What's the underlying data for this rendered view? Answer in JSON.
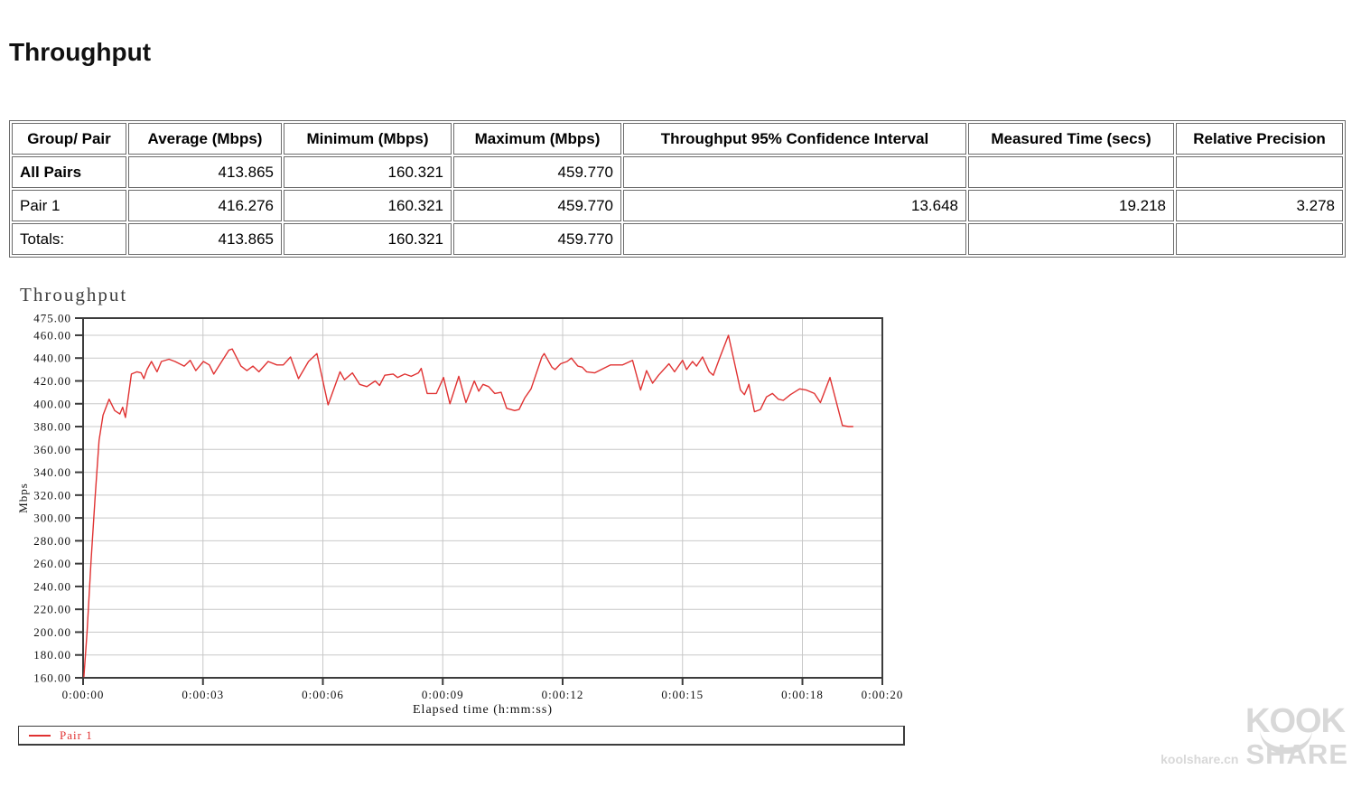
{
  "page_title": "Throughput",
  "table": {
    "headers": [
      "Group/ Pair",
      "Average (Mbps)",
      "Minimum (Mbps)",
      "Maximum (Mbps)",
      "Throughput 95% Confidence Interval",
      "Measured Time (secs)",
      "Relative Precision"
    ],
    "rows": [
      {
        "group": "All Pairs",
        "avg": "413.865",
        "min": "160.321",
        "max": "459.770",
        "ci": "",
        "time": "",
        "precision": ""
      },
      {
        "group": "Pair 1",
        "avg": "416.276",
        "min": "160.321",
        "max": "459.770",
        "ci": "13.648",
        "time": "19.218",
        "precision": "3.278"
      },
      {
        "group": "Totals:",
        "avg": "413.865",
        "min": "160.321",
        "max": "459.770",
        "ci": "",
        "time": "",
        "precision": ""
      }
    ]
  },
  "chart_data": {
    "type": "line",
    "title": "Throughput",
    "xlabel": "Elapsed time (h:mm:ss)",
    "ylabel": "Mbps",
    "ylim": [
      160,
      475
    ],
    "xlim_seconds": [
      0,
      20
    ],
    "grid": true,
    "grid_color": "#c8c8c8",
    "frame_color": "#3c3c3c",
    "line_color": "#e03232",
    "legend": {
      "position": "bottom",
      "entries": [
        {
          "label": "Pair 1",
          "color": "#e03232"
        }
      ]
    },
    "y_ticks": [
      {
        "value": 475,
        "label": "475.00"
      },
      {
        "value": 460,
        "label": "460.00"
      },
      {
        "value": 440,
        "label": "440.00"
      },
      {
        "value": 420,
        "label": "420.00"
      },
      {
        "value": 400,
        "label": "400.00"
      },
      {
        "value": 380,
        "label": "380.00"
      },
      {
        "value": 360,
        "label": "360.00"
      },
      {
        "value": 340,
        "label": "340.00"
      },
      {
        "value": 320,
        "label": "320.00"
      },
      {
        "value": 300,
        "label": "300.00"
      },
      {
        "value": 280,
        "label": "280.00"
      },
      {
        "value": 260,
        "label": "260.00"
      },
      {
        "value": 240,
        "label": "240.00"
      },
      {
        "value": 220,
        "label": "220.00"
      },
      {
        "value": 200,
        "label": "200.00"
      },
      {
        "value": 180,
        "label": "180.00"
      },
      {
        "value": 160,
        "label": "160.00"
      }
    ],
    "x_ticks": [
      {
        "value": 0,
        "label": "0:00:00"
      },
      {
        "value": 3,
        "label": "0:00:03"
      },
      {
        "value": 6,
        "label": "0:00:06"
      },
      {
        "value": 9,
        "label": "0:00:09"
      },
      {
        "value": 12,
        "label": "0:00:12"
      },
      {
        "value": 15,
        "label": "0:00:15"
      },
      {
        "value": 18,
        "label": "0:00:18"
      },
      {
        "value": 20,
        "label": "0:00:20"
      }
    ],
    "series": [
      {
        "name": "Pair 1",
        "points": [
          [
            0.02,
            161
          ],
          [
            0.1,
            200
          ],
          [
            0.2,
            262
          ],
          [
            0.3,
            318
          ],
          [
            0.4,
            368
          ],
          [
            0.5,
            390
          ],
          [
            0.65,
            404
          ],
          [
            0.79,
            394
          ],
          [
            0.92,
            391
          ],
          [
            0.99,
            397
          ],
          [
            1.06,
            388
          ],
          [
            1.21,
            426
          ],
          [
            1.35,
            428
          ],
          [
            1.45,
            427
          ],
          [
            1.52,
            422
          ],
          [
            1.6,
            430
          ],
          [
            1.71,
            437
          ],
          [
            1.85,
            428
          ],
          [
            1.96,
            437
          ],
          [
            2.15,
            439
          ],
          [
            2.3,
            437
          ],
          [
            2.53,
            433
          ],
          [
            2.68,
            438
          ],
          [
            2.82,
            429
          ],
          [
            3.01,
            437
          ],
          [
            3.16,
            434
          ],
          [
            3.27,
            426
          ],
          [
            3.65,
            447
          ],
          [
            3.73,
            448
          ],
          [
            3.95,
            433
          ],
          [
            4.1,
            429
          ],
          [
            4.25,
            433
          ],
          [
            4.4,
            428
          ],
          [
            4.63,
            437
          ],
          [
            4.85,
            434
          ],
          [
            5.01,
            434
          ],
          [
            5.19,
            441
          ],
          [
            5.39,
            422
          ],
          [
            5.64,
            437
          ],
          [
            5.85,
            444
          ],
          [
            6.13,
            399
          ],
          [
            6.43,
            428
          ],
          [
            6.54,
            421
          ],
          [
            6.74,
            427
          ],
          [
            6.92,
            417
          ],
          [
            7.1,
            415
          ],
          [
            7.31,
            420
          ],
          [
            7.42,
            416
          ],
          [
            7.55,
            425
          ],
          [
            7.76,
            426
          ],
          [
            7.87,
            423
          ],
          [
            8.05,
            426
          ],
          [
            8.21,
            424
          ],
          [
            8.39,
            427
          ],
          [
            8.46,
            431
          ],
          [
            8.61,
            409
          ],
          [
            8.84,
            409
          ],
          [
            9.02,
            423
          ],
          [
            9.18,
            400
          ],
          [
            9.4,
            424
          ],
          [
            9.58,
            401
          ],
          [
            9.79,
            420
          ],
          [
            9.9,
            411
          ],
          [
            10.01,
            417
          ],
          [
            10.15,
            415
          ],
          [
            10.3,
            409
          ],
          [
            10.46,
            410
          ],
          [
            10.6,
            396
          ],
          [
            10.8,
            394
          ],
          [
            10.91,
            395
          ],
          [
            11.05,
            405
          ],
          [
            11.21,
            413
          ],
          [
            11.48,
            441
          ],
          [
            11.54,
            444
          ],
          [
            11.73,
            432
          ],
          [
            11.81,
            430
          ],
          [
            11.95,
            435
          ],
          [
            12.11,
            437
          ],
          [
            12.22,
            440
          ],
          [
            12.38,
            433
          ],
          [
            12.49,
            432
          ],
          [
            12.6,
            428
          ],
          [
            12.8,
            427
          ],
          [
            13.2,
            434
          ],
          [
            13.5,
            434
          ],
          [
            13.75,
            438
          ],
          [
            13.95,
            412
          ],
          [
            14.1,
            429
          ],
          [
            14.25,
            418
          ],
          [
            14.4,
            425
          ],
          [
            14.66,
            435
          ],
          [
            14.8,
            428
          ],
          [
            15.0,
            438
          ],
          [
            15.1,
            430
          ],
          [
            15.25,
            437
          ],
          [
            15.35,
            433
          ],
          [
            15.5,
            441
          ],
          [
            15.67,
            428
          ],
          [
            15.77,
            425
          ],
          [
            15.94,
            441
          ],
          [
            16.15,
            460
          ],
          [
            16.45,
            412
          ],
          [
            16.55,
            408
          ],
          [
            16.66,
            417
          ],
          [
            16.8,
            393
          ],
          [
            16.95,
            395
          ],
          [
            17.1,
            406
          ],
          [
            17.25,
            409
          ],
          [
            17.4,
            404
          ],
          [
            17.52,
            403
          ],
          [
            17.7,
            408
          ],
          [
            17.93,
            413
          ],
          [
            18.1,
            412
          ],
          [
            18.3,
            409
          ],
          [
            18.45,
            401
          ],
          [
            18.69,
            423
          ],
          [
            19.0,
            381
          ],
          [
            19.15,
            380
          ],
          [
            19.26,
            380
          ]
        ]
      }
    ]
  },
  "watermark": {
    "logo_top": "KOOK",
    "logo_bottom": "SHARE",
    "site": "koolshare.cn",
    "color": "#d8d8d8"
  }
}
